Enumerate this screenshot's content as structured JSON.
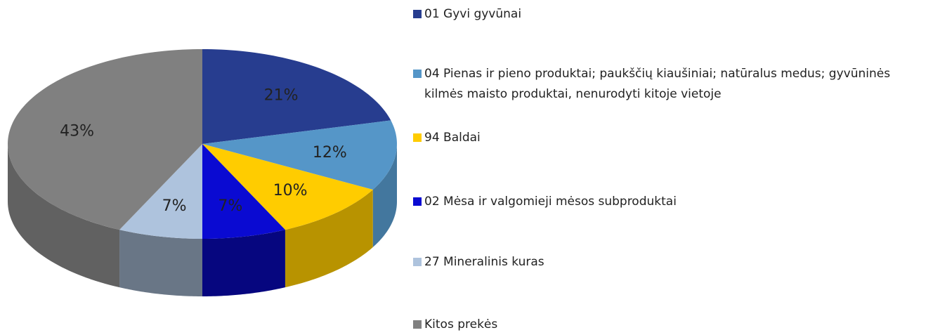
{
  "chart_data": {
    "type": "pie",
    "categories": [
      "01 Gyvi gyvūnai",
      "04 Pienas ir pieno produktai; paukščių kiaušiniai; natūralus medus; gyvūninės kilmės maisto produktai, nenurodyti kitoje vietoje",
      "94 Baldai",
      "02 Mėsa ir valgomieji mėsos subproduktai",
      "27 Mineralinis kuras",
      "Kitos prekės"
    ],
    "values": [
      21,
      12,
      10,
      7,
      7,
      43
    ],
    "value_labels": [
      "21%",
      "12%",
      "10%",
      "7%",
      "7%",
      "43%"
    ],
    "colors": [
      "#273d8f",
      "#5596c8",
      "#ffcc00",
      "#0a0ad2",
      "#aec3dd",
      "#808080"
    ],
    "legend": "right"
  }
}
